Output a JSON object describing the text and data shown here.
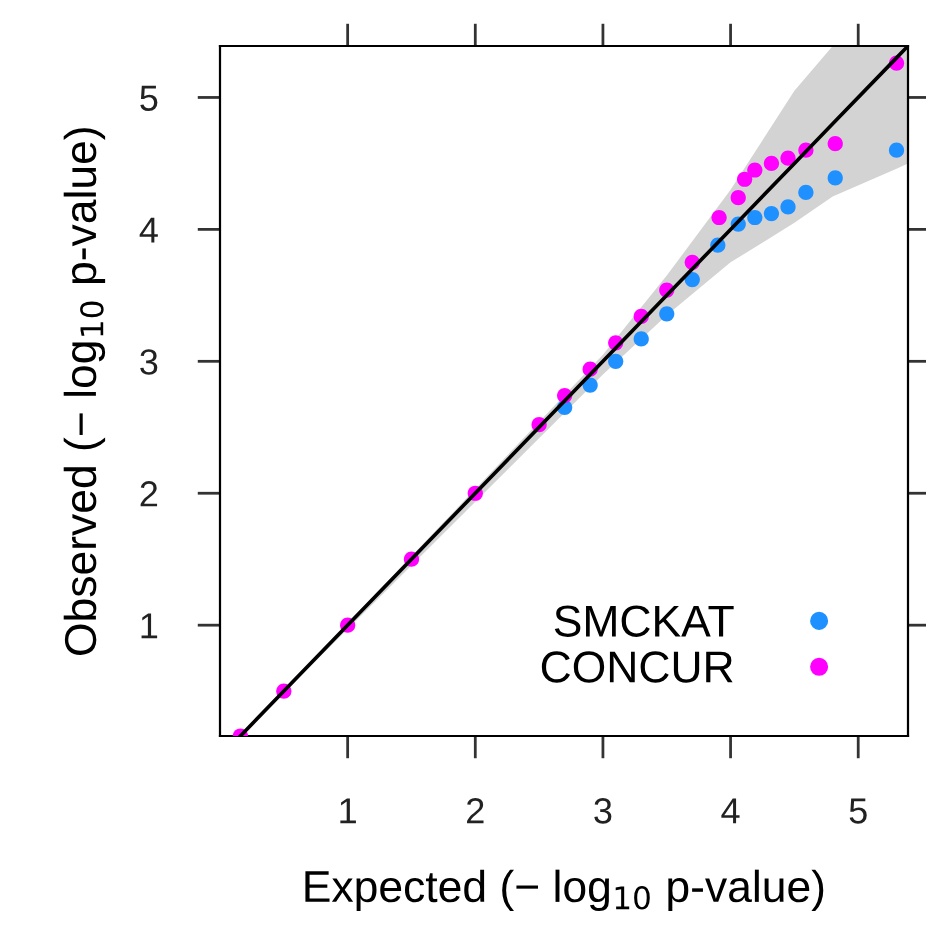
{
  "chart_data": {
    "type": "scatter",
    "xlabel": "Expected (− log$_{10}$ p-value)",
    "ylabel": "Observed (− log$_{10}$ p-value)",
    "xlim": [
      0,
      5.39
    ],
    "ylim": [
      0.16,
      5.39
    ],
    "xticks": [
      1,
      2,
      3,
      4,
      5
    ],
    "yticks": [
      1,
      2,
      3,
      4,
      5
    ],
    "legend": "bottom right",
    "marker": "circle",
    "series": [
      {
        "type": "line",
        "marker": "none",
        "color": "#000000",
        "x": [
          0.16,
          3,
          3.5,
          4,
          4.5,
          4.8,
          5.3,
          5.39
        ],
        "values": [
          0.16,
          3,
          3.5,
          4,
          4.5,
          4.8,
          5.3,
          5.39
        ],
        "lower": [
          0.16,
          2.9,
          3.35,
          3.75,
          4.05,
          4.25,
          4.46,
          4.5
        ],
        "upper": [
          0.16,
          3.05,
          3.65,
          4.3,
          5.05,
          5.39,
          5.39,
          5.39
        ]
      },
      {
        "name": "SMCKAT",
        "color": "#1e90ff",
        "x": [
          2.7,
          2.9,
          3.1,
          3.3,
          3.5,
          3.7,
          3.9,
          4.06,
          4.19,
          4.32,
          4.45,
          4.59,
          4.82,
          5.3
        ],
        "values": [
          2.65,
          2.82,
          3.0,
          3.17,
          3.36,
          3.62,
          3.88,
          4.04,
          4.09,
          4.12,
          4.17,
          4.28,
          4.39,
          4.6
        ]
      },
      {
        "name": "CONCUR",
        "color": "#ff00ff",
        "x": [
          0.16,
          0.5,
          1,
          1.5,
          2,
          2.5,
          2.7,
          2.9,
          3.1,
          3.3,
          3.5,
          3.7,
          3.91,
          4.06,
          4.11,
          4.19,
          4.32,
          4.45,
          4.59,
          4.82,
          5.3
        ],
        "values": [
          0.16,
          0.5,
          1,
          1.5,
          2,
          2.52,
          2.74,
          2.94,
          3.14,
          3.34,
          3.54,
          3.75,
          4.09,
          4.24,
          4.38,
          4.45,
          4.5,
          4.54,
          4.6,
          4.65,
          5.26
        ]
      }
    ]
  }
}
